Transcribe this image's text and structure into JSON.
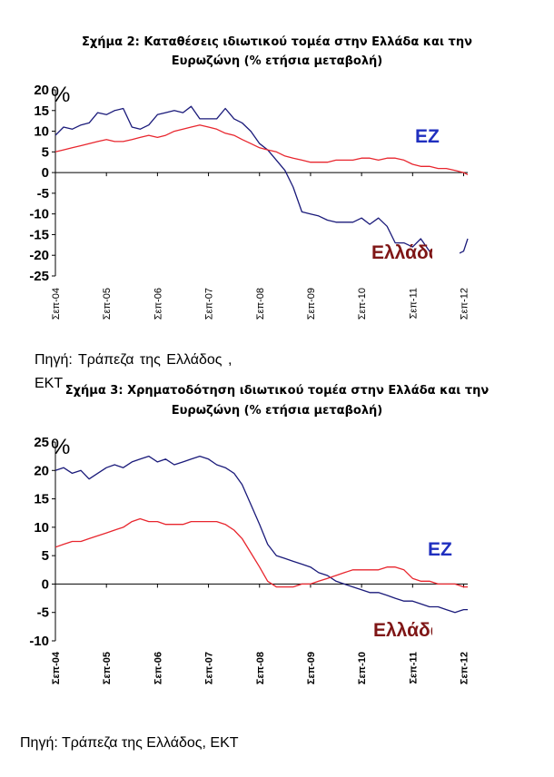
{
  "chart1": {
    "title_line1": "Σχήμα 2: Καταθέσεις ιδιωτικού τομέα στην Ελλάδα και την",
    "title_line2": "Ευρωζώνη (% ετήσια μεταβολή)",
    "source": "Πηγή:  Τράπεζα  της  Ελλάδος  ,",
    "source_extra": "ΕΚΤ"
  },
  "chart2": {
    "title_line1": "Σχήμα 3: Χρηματοδότηση ιδιωτικού τομέα στην Ελλάδα και την",
    "title_line2": "Ευρωζώνη (% ετήσια μεταβολή)",
    "source": "Πηγή: Τράπεζα της Ελλάδος, ΕΚΤ"
  },
  "chart_data": [
    {
      "type": "line",
      "title": "Σχήμα 2: Καταθέσεις ιδιωτικού τομέα στην Ελλάδα και την Ευρωζώνη (% ετήσια μεταβολή)",
      "unit_label": "%",
      "categories": [
        "Σεπ-04",
        "Σεπ-05",
        "Σεπ-06",
        "Σεπ-07",
        "Σεπ-08",
        "Σεπ-09",
        "Σεπ-10",
        "Σεπ-11",
        "Σεπ-12"
      ],
      "ylim": [
        -25,
        20
      ],
      "yticks": [
        20,
        15,
        10,
        5,
        0,
        -5,
        -10,
        -15,
        -20,
        -25
      ],
      "x_range": [
        2004.67,
        2012.75
      ],
      "grid": false,
      "series": [
        {
          "name": "ΕΖ",
          "color": "#1a1a7a",
          "label_color": "#1f2fbf",
          "x": [
            2004.67,
            2004.83,
            2005.0,
            2005.17,
            2005.33,
            2005.5,
            2005.67,
            2005.83,
            2006.0,
            2006.17,
            2006.33,
            2006.5,
            2006.67,
            2006.83,
            2007.0,
            2007.17,
            2007.33,
            2007.5,
            2007.67,
            2007.83,
            2008.0,
            2008.17,
            2008.33,
            2008.5,
            2008.67,
            2008.83,
            2009.0,
            2009.17,
            2009.33,
            2009.5,
            2009.67,
            2009.83,
            2010.0,
            2010.17,
            2010.33,
            2010.5,
            2010.67,
            2010.83,
            2011.0,
            2011.17,
            2011.33,
            2011.5,
            2011.67,
            2011.83,
            2012.0,
            2012.17,
            2012.33,
            2012.5,
            2012.67,
            2012.75
          ],
          "y": [
            9,
            11,
            10.5,
            11.5,
            12,
            14.5,
            14,
            15,
            15.5,
            11,
            10.5,
            11.5,
            14,
            14.5,
            15,
            14.5,
            16,
            13,
            13,
            13,
            15.5,
            13,
            12,
            10,
            7,
            5.5,
            3,
            0.5,
            -3.5,
            -9.5,
            -10,
            -10.5,
            -11.5,
            -12,
            -12,
            -12,
            -11,
            -12.5,
            -11,
            -13,
            -17,
            -17,
            -18,
            -16,
            -19,
            -19,
            -20,
            -20,
            -19,
            -16
          ]
        },
        {
          "name": "Ελλάδα",
          "color": "#e8262e",
          "label_color": "#7f1616",
          "x": [
            2004.67,
            2004.83,
            2005.0,
            2005.17,
            2005.33,
            2005.5,
            2005.67,
            2005.83,
            2006.0,
            2006.17,
            2006.33,
            2006.5,
            2006.67,
            2006.83,
            2007.0,
            2007.17,
            2007.33,
            2007.5,
            2007.67,
            2007.83,
            2008.0,
            2008.17,
            2008.33,
            2008.5,
            2008.67,
            2008.83,
            2009.0,
            2009.17,
            2009.33,
            2009.5,
            2009.67,
            2009.83,
            2010.0,
            2010.17,
            2010.33,
            2010.5,
            2010.67,
            2010.83,
            2011.0,
            2011.17,
            2011.33,
            2011.5,
            2011.67,
            2011.83,
            2012.0,
            2012.17,
            2012.33,
            2012.5,
            2012.67,
            2012.75
          ],
          "y": [
            5,
            5.5,
            6,
            6.5,
            7,
            7.5,
            8,
            7.5,
            7.5,
            8,
            8.5,
            9,
            8.5,
            9,
            10,
            10.5,
            11,
            11.5,
            11,
            10.5,
            9.5,
            9,
            8,
            7,
            6,
            5.5,
            5,
            4,
            3.5,
            3,
            2.5,
            2.5,
            2.5,
            3,
            3,
            3,
            3.5,
            3.5,
            3,
            3.5,
            3.5,
            3,
            2,
            1.5,
            1.5,
            1,
            1,
            0.5,
            0,
            -0.5
          ]
        }
      ]
    },
    {
      "type": "line",
      "title": "Σχήμα 3: Χρηματοδότηση ιδιωτικού τομέα στην Ελλάδα και την Ευρωζώνη (% ετήσια μεταβολή)",
      "unit_label": "%",
      "categories": [
        "Σεπ-04",
        "Σεπ-05",
        "Σεπ-06",
        "Σεπ-07",
        "Σεπ-08",
        "Σεπ-09",
        "Σεπ-10",
        "Σεπ-11",
        "Σεπ-12"
      ],
      "ylim": [
        -10,
        25
      ],
      "yticks": [
        25,
        20,
        15,
        10,
        5,
        0,
        -5,
        -10
      ],
      "x_range": [
        2004.67,
        2012.75
      ],
      "grid": false,
      "series": [
        {
          "name": "ΕΖ",
          "color": "#1a1a7a",
          "label_color": "#1f2fbf",
          "x": [
            2004.67,
            2004.83,
            2005.0,
            2005.17,
            2005.33,
            2005.5,
            2005.67,
            2005.83,
            2006.0,
            2006.17,
            2006.33,
            2006.5,
            2006.67,
            2006.83,
            2007.0,
            2007.17,
            2007.33,
            2007.5,
            2007.67,
            2007.83,
            2008.0,
            2008.17,
            2008.33,
            2008.5,
            2008.67,
            2008.83,
            2009.0,
            2009.17,
            2009.33,
            2009.5,
            2009.67,
            2009.83,
            2010.0,
            2010.17,
            2010.33,
            2010.5,
            2010.67,
            2010.83,
            2011.0,
            2011.17,
            2011.33,
            2011.5,
            2011.67,
            2011.83,
            2012.0,
            2012.17,
            2012.33,
            2012.5,
            2012.67,
            2012.75
          ],
          "y": [
            20,
            20.5,
            19.5,
            20,
            18.5,
            19.5,
            20.5,
            21,
            20.5,
            21.5,
            22,
            22.5,
            21.5,
            22,
            21,
            21.5,
            22,
            22.5,
            22,
            21,
            20.5,
            19.5,
            17.5,
            14,
            10.5,
            7,
            5,
            4.5,
            4,
            3.5,
            3,
            2,
            1.5,
            0.5,
            0,
            -0.5,
            -1,
            -1.5,
            -1.5,
            -2,
            -2.5,
            -3,
            -3,
            -3.5,
            -4,
            -4,
            -4.5,
            -5,
            -4.5,
            -4.5
          ]
        },
        {
          "name": "Ελλάδα",
          "color": "#e8262e",
          "label_color": "#7f1616",
          "x": [
            2004.67,
            2004.83,
            2005.0,
            2005.17,
            2005.33,
            2005.5,
            2005.67,
            2005.83,
            2006.0,
            2006.17,
            2006.33,
            2006.5,
            2006.67,
            2006.83,
            2007.0,
            2007.17,
            2007.33,
            2007.5,
            2007.67,
            2007.83,
            2008.0,
            2008.17,
            2008.33,
            2008.5,
            2008.67,
            2008.83,
            2009.0,
            2009.17,
            2009.33,
            2009.5,
            2009.67,
            2009.83,
            2010.0,
            2010.17,
            2010.33,
            2010.5,
            2010.67,
            2010.83,
            2011.0,
            2011.17,
            2011.33,
            2011.5,
            2011.67,
            2011.83,
            2012.0,
            2012.17,
            2012.33,
            2012.5,
            2012.67,
            2012.75
          ],
          "y": [
            6.5,
            7,
            7.5,
            7.5,
            8,
            8.5,
            9,
            9.5,
            10,
            11,
            11.5,
            11,
            11,
            10.5,
            10.5,
            10.5,
            11,
            11,
            11,
            11,
            10.5,
            9.5,
            8,
            5.5,
            3,
            0.5,
            -0.5,
            -0.5,
            -0.5,
            0,
            0,
            0.5,
            1,
            1.5,
            2,
            2.5,
            2.5,
            2.5,
            2.5,
            3,
            3,
            2.5,
            1,
            0.5,
            0.5,
            0,
            0,
            0,
            -0.5,
            -0.5
          ]
        }
      ]
    }
  ]
}
